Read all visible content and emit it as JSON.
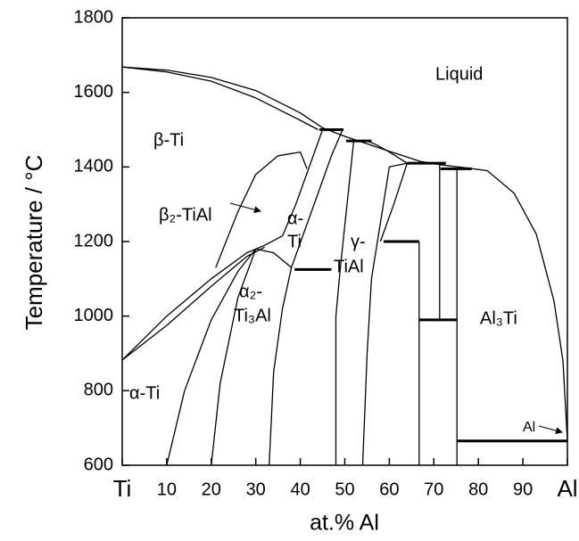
{
  "chart_data": {
    "type": "line",
    "xlabel": "at.% Al",
    "ylabel": "Temperature / °C",
    "xlim": [
      0,
      100
    ],
    "ylim": [
      600,
      1800
    ],
    "xticks": [
      {
        "value": 0,
        "label": "Ti"
      },
      10,
      20,
      30,
      40,
      50,
      60,
      70,
      80,
      90,
      {
        "value": 100,
        "label": "Al"
      }
    ],
    "yticks": [
      600,
      800,
      1000,
      1200,
      1400,
      1600,
      1800
    ],
    "annotations": [
      "Liquid",
      "β-Ti",
      "β₂-TiAl",
      "α-",
      "Ti",
      "α₂-",
      "Ti₃Al",
      "γ-",
      "TiAl",
      "α-Ti",
      "Al₃Ti",
      "Al"
    ],
    "series": [
      {
        "color": "#000",
        "x": [
          0,
          10,
          20,
          30,
          40,
          45,
          50,
          55,
          60,
          67,
          72,
          77,
          82,
          88,
          93,
          97,
          99,
          100
        ],
        "values": [
          1668,
          1660,
          1640,
          1605,
          1545,
          1505,
          1482,
          1462,
          1442,
          1415,
          1405,
          1398,
          1390,
          1330,
          1220,
          1040,
          880,
          665
        ]
      },
      {
        "color": "#000",
        "x": [
          0,
          10,
          20,
          30,
          40,
          44
        ],
        "values": [
          1668,
          1655,
          1630,
          1585,
          1525,
          1500
        ]
      },
      {
        "color": "#000",
        "x": [
          0,
          10,
          20,
          28,
          32,
          36
        ],
        "values": [
          882,
          1000,
          1100,
          1170,
          1190,
          1215
        ]
      },
      {
        "color": "#000",
        "x": [
          0,
          10,
          20,
          28,
          32
        ],
        "values": [
          882,
          975,
          1080,
          1160,
          1185
        ]
      },
      {
        "color": "#000",
        "x": [
          36,
          39,
          42,
          45
        ],
        "values": [
          1215,
          1300,
          1400,
          1500
        ]
      },
      {
        "color": "#000",
        "x": [
          38,
          41,
          44,
          47,
          49.5
        ],
        "values": [
          1130,
          1230,
          1330,
          1430,
          1500
        ]
      },
      {
        "color": "#000",
        "x": [
          21,
          26,
          30,
          35,
          40,
          41.5
        ],
        "values": [
          1130,
          1280,
          1380,
          1430,
          1440,
          1395
        ]
      },
      {
        "color": "#000",
        "x": [
          10,
          14,
          20,
          26,
          30
        ],
        "values": [
          600,
          800,
          990,
          1120,
          1180
        ]
      },
      {
        "color": "#000",
        "x": [
          20,
          22,
          26,
          30
        ],
        "values": [
          600,
          820,
          1050,
          1180
        ]
      },
      {
        "color": "#000",
        "x": [
          30,
          34,
          38
        ],
        "values": [
          1180,
          1170,
          1130
        ]
      },
      {
        "color": "#000",
        "x": [
          33,
          34,
          36,
          38
        ],
        "values": [
          600,
          850,
          1020,
          1130
        ]
      },
      {
        "color": "#000",
        "x": [
          48,
          48,
          49,
          50.5,
          52
        ],
        "values": [
          600,
          1000,
          1130,
          1300,
          1470
        ]
      },
      {
        "color": "#000",
        "x": [
          54,
          55,
          56,
          58,
          60,
          64
        ],
        "values": [
          600,
          900,
          1100,
          1250,
          1400,
          1410
        ]
      },
      {
        "color": "#000",
        "x": [
          55,
          57,
          60,
          64
        ],
        "values": [
          1470,
          1460,
          1440,
          1410
        ]
      },
      {
        "color": "#000",
        "x": [
          58,
          61,
          64
        ],
        "values": [
          1200,
          1300,
          1410
        ]
      },
      {
        "color": "#000",
        "x": [
          66.7,
          66.7
        ],
        "values": [
          600,
          1200
        ]
      },
      {
        "color": "#000",
        "x": [
          71.3,
          71.3
        ],
        "values": [
          990,
          1410
        ]
      },
      {
        "color": "#000",
        "x": [
          75.2,
          75.2
        ],
        "values": [
          600,
          1395
        ]
      },
      {
        "color": "#000",
        "style": "bold",
        "x": [
          44.3,
          49.7
        ],
        "values": [
          1500,
          1500
        ]
      },
      {
        "color": "#000",
        "style": "bold",
        "x": [
          50.3,
          56
        ],
        "values": [
          1470,
          1470
        ]
      },
      {
        "color": "#000",
        "style": "bold",
        "x": [
          64,
          72.7
        ],
        "values": [
          1410,
          1410
        ]
      },
      {
        "color": "#000",
        "style": "bold",
        "x": [
          71.5,
          78.5
        ],
        "values": [
          1395,
          1395
        ]
      },
      {
        "color": "#000",
        "style": "bold",
        "x": [
          38.7,
          47
        ],
        "values": [
          1125,
          1125
        ]
      },
      {
        "color": "#000",
        "style": "bold",
        "x": [
          58.7,
          66.7
        ],
        "values": [
          1200,
          1200
        ]
      },
      {
        "color": "#000",
        "style": "bold",
        "x": [
          66.7,
          75.2
        ],
        "values": [
          990,
          990
        ]
      },
      {
        "color": "#000",
        "style": "bold",
        "x": [
          75.2,
          100
        ],
        "values": [
          665,
          665
        ]
      }
    ]
  }
}
